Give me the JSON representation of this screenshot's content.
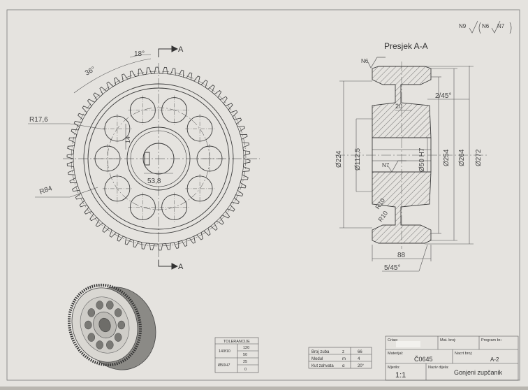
{
  "drawing": {
    "section_title": "Presjek A-A",
    "section_marker": "A",
    "surface_marks": {
      "top_right_primary": "N9",
      "top_right_secondary": [
        "N6",
        "N7"
      ],
      "section_top": "N6",
      "section_mid": "N7"
    },
    "front_view_dims": {
      "angle_18": "18°",
      "angle_36": "36°",
      "radius_17_6": "R17,6",
      "radius_84": "R84",
      "keyway_53_8": "53,8",
      "key_14": "14"
    },
    "section_dims": {
      "chamfer_top": "2/45°",
      "width_20": "20",
      "dia_224": "Ø224",
      "dia_112_5": "Ø112,5",
      "dia_50_h7": "Ø50 H7",
      "dia_254": "Ø254",
      "dia_264": "Ø264",
      "dia_272": "Ø272",
      "radius_r10_a": "R10",
      "radius_r10_b": "R10",
      "width_88": "88",
      "chamfer_bottom": "5/45°"
    },
    "colors": {
      "paper": "#e4e2de",
      "line": "#3a3a3a",
      "hatch": "#555555",
      "frame": "#555555"
    }
  },
  "tolerances": {
    "title": "TOLERANCIJE",
    "rows": [
      {
        "fit": "140f10",
        "upper": "120",
        "lower": "50"
      },
      {
        "fit": "Ø50H7",
        "upper": "25",
        "lower": "0"
      }
    ]
  },
  "gear_params": {
    "rows": [
      {
        "label": "Broj zuba",
        "symbol": "z",
        "value": "66"
      },
      {
        "label": "Modul",
        "symbol": "m",
        "value": "4"
      },
      {
        "label": "Kut zahvata",
        "symbol": "α",
        "value": "20°"
      }
    ]
  },
  "title_block": {
    "crtao_label": "Crtao:",
    "mat_broj_label": "Mat. broj:",
    "program_br_label": "Program br.:",
    "materijal_label": "Materijal:",
    "materijal_value": "Č0645",
    "nacrt_broj_label": "Nacrt broj:",
    "nacrt_broj_value": "A-2",
    "mjerilo_label": "Mjerilo:",
    "mjerilo_value": "1:1",
    "naziv_label": "Naziv dijela:",
    "naziv_value": "Gonjeni zupčanik"
  }
}
